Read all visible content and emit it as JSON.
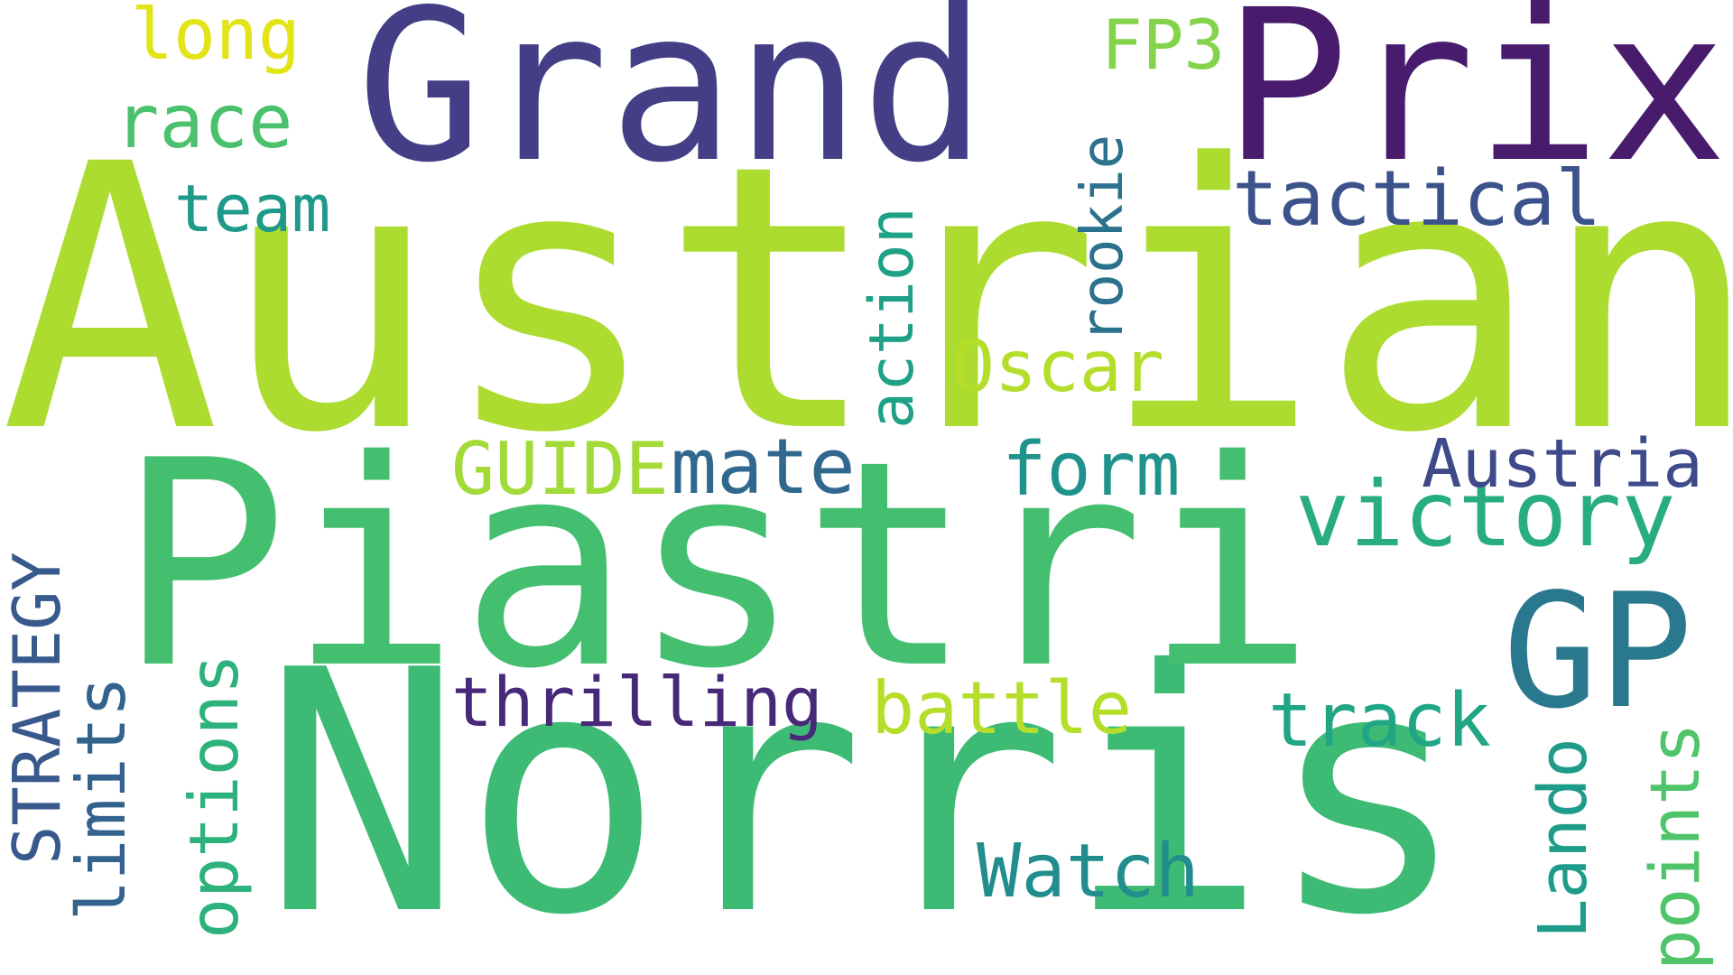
{
  "words": {
    "austrian": {
      "text": "Austrian",
      "color": "#addc30"
    },
    "norris": {
      "text": "Norris",
      "color": "#3dbb74"
    },
    "piastri": {
      "text": "Piastri",
      "color": "#44bf70"
    },
    "grand": {
      "text": "Grand",
      "color": "#433e85"
    },
    "prix": {
      "text": "Prix",
      "color": "#481b6d"
    },
    "gp": {
      "text": "GP",
      "color": "#2a788e"
    },
    "victory": {
      "text": "victory",
      "color": "#27ad81"
    },
    "tactical": {
      "text": "tactical",
      "color": "#3b528b"
    },
    "austria": {
      "text": "Austria",
      "color": "#3e4a89"
    },
    "thrilling": {
      "text": "thrilling",
      "color": "#482878"
    },
    "battle": {
      "text": "battle",
      "color": "#b5de2b"
    },
    "track": {
      "text": "track",
      "color": "#21a685"
    },
    "watch": {
      "text": "Watch",
      "color": "#228d8d"
    },
    "mate": {
      "text": "mate",
      "color": "#31688e"
    },
    "guide": {
      "text": "GUIDE",
      "color": "#a2da37"
    },
    "form": {
      "text": "form",
      "color": "#20928c"
    },
    "oscar": {
      "text": "Oscar",
      "color": "#b5de2b"
    },
    "team": {
      "text": "team",
      "color": "#1f9a8a"
    },
    "race": {
      "text": "race",
      "color": "#4ac16d"
    },
    "long": {
      "text": "long",
      "color": "#e2e418"
    },
    "fp3": {
      "text": "FP3",
      "color": "#84d44b"
    },
    "strategy": {
      "text": "STRATEGY",
      "color": "#38598c"
    },
    "limits": {
      "text": "limits",
      "color": "#33638d"
    },
    "options": {
      "text": "options",
      "color": "#2db27d"
    },
    "action": {
      "text": "action",
      "color": "#1fa187"
    },
    "rookie": {
      "text": "rookie",
      "color": "#2c728e"
    },
    "lando": {
      "text": "Lando",
      "color": "#1e9c89"
    },
    "points": {
      "text": "points",
      "color": "#4fc46a"
    }
  }
}
